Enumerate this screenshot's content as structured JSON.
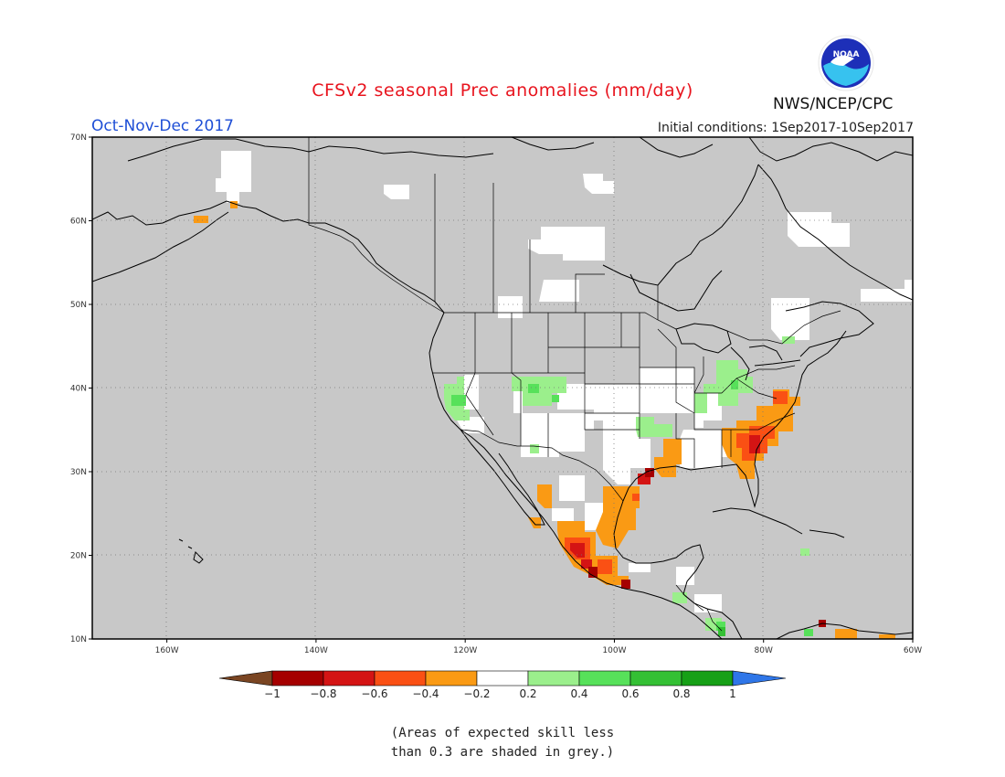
{
  "header": {
    "title": "CFSv2 seasonal Prec anomalies (mm/day)",
    "season": "Oct-Nov-Dec 2017",
    "initial_conditions": "Initial conditions: 1Sep2017-10Sep2017",
    "agency": "NWS/NCEP/CPC",
    "logo_text": "NOAA"
  },
  "map": {
    "lon_range": [
      -170,
      -60
    ],
    "lat_range": [
      10,
      70
    ],
    "lon_ticks": [
      {
        "value": -160,
        "label": "160W"
      },
      {
        "value": -140,
        "label": "140W"
      },
      {
        "value": -120,
        "label": "120W"
      },
      {
        "value": -100,
        "label": "100W"
      },
      {
        "value": -80,
        "label": "80W"
      },
      {
        "value": -60,
        "label": "60W"
      }
    ],
    "lat_ticks": [
      {
        "value": 70,
        "label": "70N"
      },
      {
        "value": 60,
        "label": "60N"
      },
      {
        "value": 50,
        "label": "50N"
      },
      {
        "value": 40,
        "label": "40N"
      },
      {
        "value": 30,
        "label": "30N"
      },
      {
        "value": 20,
        "label": "20N"
      },
      {
        "value": 10,
        "label": "10N"
      }
    ],
    "grey_color": "#c8c8c8",
    "coast_color": "#000000"
  },
  "colorbar": {
    "colors": [
      "#7a4522",
      "#a50000",
      "#d41414",
      "#fa5014",
      "#fa9a14",
      "#ffffff",
      "#9bef8c",
      "#57e15a",
      "#34c034",
      "#17a017",
      "#2f76e8"
    ],
    "tick_labels": [
      "-1",
      "-0.8",
      "-0.6",
      "-0.4",
      "-0.2",
      "0.2",
      "0.4",
      "0.6",
      "0.8",
      "1"
    ]
  },
  "note": {
    "line1": "(Areas of expected skill less",
    "line2": "than 0.3 are shaded in grey.)"
  }
}
